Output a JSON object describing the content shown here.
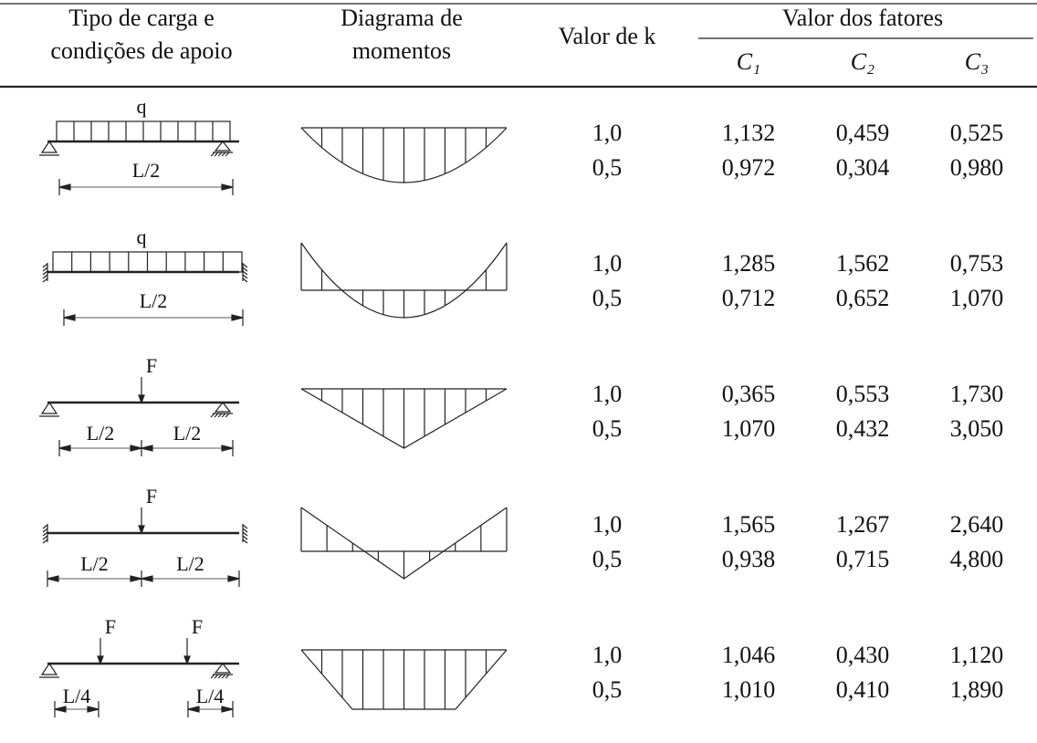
{
  "header": {
    "col1": [
      "Tipo de carga e",
      "condições de apoio"
    ],
    "col2": [
      "Diagrama de",
      "momentos"
    ],
    "col3": "Valor de k",
    "group": "Valor dos fatores",
    "factors": [
      "C₁",
      "C₂",
      "C₃"
    ]
  },
  "rows": [
    {
      "loads": [
        "q"
      ],
      "dims": [
        "L/2"
      ],
      "values": [
        [
          "1,0",
          "1,132",
          "0,459",
          "0,525"
        ],
        [
          "0,5",
          "0,972",
          "0,304",
          "0,980"
        ]
      ]
    },
    {
      "loads": [
        "q"
      ],
      "dims": [
        "L/2"
      ],
      "values": [
        [
          "1,0",
          "1,285",
          "1,562",
          "0,753"
        ],
        [
          "0,5",
          "0,712",
          "0,652",
          "1,070"
        ]
      ]
    },
    {
      "loads": [
        "F"
      ],
      "dims": [
        "L/2",
        "L/2"
      ],
      "values": [
        [
          "1,0",
          "0,365",
          "0,553",
          "1,730"
        ],
        [
          "0,5",
          "1,070",
          "0,432",
          "3,050"
        ]
      ]
    },
    {
      "loads": [
        "F"
      ],
      "dims": [
        "L/2",
        "L/2"
      ],
      "values": [
        [
          "1,0",
          "1,565",
          "1,267",
          "2,640"
        ],
        [
          "0,5",
          "0,938",
          "0,715",
          "4,800"
        ]
      ]
    },
    {
      "loads": [
        "F",
        "F"
      ],
      "dims": [
        "L/4",
        "L/4"
      ],
      "values": [
        [
          "1,0",
          "1,046",
          "0,430",
          "1,120"
        ],
        [
          "0,5",
          "1,010",
          "0,410",
          "1,890"
        ]
      ]
    }
  ]
}
